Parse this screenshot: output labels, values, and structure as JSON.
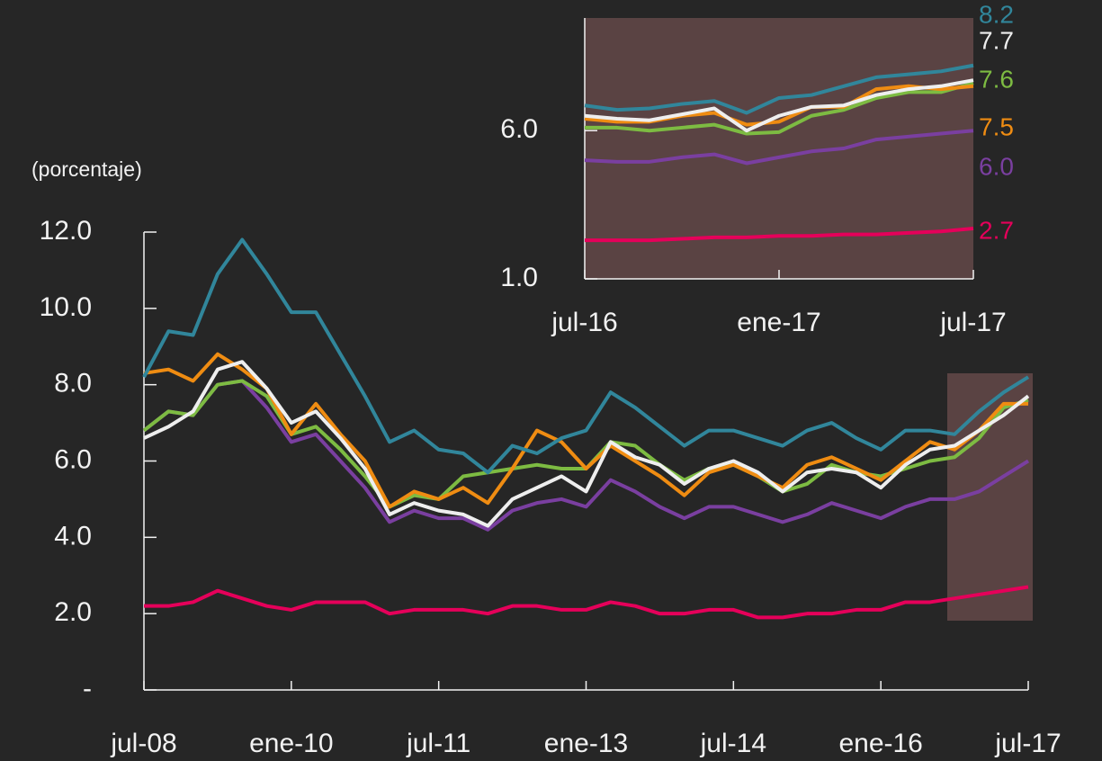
{
  "chart_data": [
    {
      "type": "line",
      "y_label": "(porcentaje)",
      "categories": [
        "jul-08",
        null,
        null,
        null,
        null,
        null,
        "ene-10",
        null,
        null,
        null,
        null,
        null,
        "jul-11",
        null,
        null,
        null,
        null,
        null,
        "ene-13",
        null,
        null,
        null,
        null,
        null,
        "jul-14",
        null,
        null,
        null,
        null,
        null,
        "ene-16",
        null,
        null,
        null,
        null,
        null,
        "jul-17"
      ],
      "ylim": [
        0,
        12
      ],
      "yticks": [
        {
          "value": 0,
          "label": "-"
        },
        {
          "value": 2,
          "label": "2.0"
        },
        {
          "value": 4,
          "label": "4.0"
        },
        {
          "value": 6,
          "label": "6.0"
        },
        {
          "value": 8,
          "label": "8.0"
        },
        {
          "value": 10,
          "label": "10.0"
        },
        {
          "value": 12,
          "label": "12.0"
        }
      ],
      "series": [
        {
          "color": "#e5005a",
          "values": [
            2.2,
            2.2,
            2.3,
            2.6,
            2.4,
            2.2,
            2.1,
            2.3,
            2.3,
            2.3,
            2.0,
            2.1,
            2.1,
            2.1,
            2.0,
            2.2,
            2.2,
            2.1,
            2.1,
            2.3,
            2.2,
            2.0,
            2.0,
            2.1,
            2.1,
            1.9,
            1.9,
            2.0,
            2.0,
            2.1,
            2.1,
            2.3,
            2.3,
            2.4,
            2.5,
            2.6,
            2.7
          ]
        },
        {
          "color": "#7a3fa0",
          "values": [
            6.8,
            7.3,
            7.2,
            8.0,
            8.1,
            7.4,
            6.5,
            6.7,
            6.0,
            5.3,
            4.4,
            4.7,
            4.5,
            4.5,
            4.2,
            4.7,
            4.9,
            5.0,
            4.8,
            5.5,
            5.2,
            4.8,
            4.5,
            4.8,
            4.8,
            4.6,
            4.4,
            4.6,
            4.9,
            4.7,
            4.5,
            4.8,
            5.0,
            5.0,
            5.2,
            5.6,
            6.0
          ]
        },
        {
          "color": "#7dbb42",
          "values": [
            6.8,
            7.3,
            7.2,
            8.0,
            8.1,
            7.7,
            6.7,
            6.9,
            6.3,
            5.6,
            4.8,
            5.1,
            5.0,
            5.6,
            5.7,
            5.8,
            5.9,
            5.8,
            5.8,
            6.5,
            6.4,
            5.9,
            5.5,
            5.8,
            5.9,
            5.6,
            5.2,
            5.4,
            5.9,
            5.7,
            5.6,
            5.8,
            6.0,
            6.1,
            6.6,
            7.4,
            7.6
          ]
        },
        {
          "color": "#ef8c12",
          "values": [
            8.3,
            8.4,
            8.1,
            8.8,
            8.4,
            7.9,
            6.7,
            7.5,
            6.7,
            6.0,
            4.8,
            5.2,
            5.0,
            5.3,
            4.9,
            5.8,
            6.8,
            6.5,
            5.8,
            6.4,
            6.0,
            5.6,
            5.1,
            5.7,
            5.9,
            5.6,
            5.3,
            5.9,
            6.1,
            5.8,
            5.5,
            6.0,
            6.5,
            6.3,
            6.8,
            7.5,
            7.5
          ]
        },
        {
          "color": "#31869b",
          "values": [
            8.2,
            9.4,
            9.3,
            10.9,
            11.8,
            10.9,
            9.9,
            9.9,
            8.8,
            7.7,
            6.5,
            6.8,
            6.3,
            6.2,
            5.7,
            6.4,
            6.2,
            6.6,
            6.8,
            7.8,
            7.4,
            6.9,
            6.4,
            6.8,
            6.8,
            6.6,
            6.4,
            6.8,
            7.0,
            6.6,
            6.3,
            6.8,
            6.8,
            6.7,
            7.3,
            7.8,
            8.2
          ]
        },
        {
          "color": "#eeeeee",
          "values": [
            6.6,
            6.9,
            7.3,
            8.4,
            8.6,
            7.9,
            7.0,
            7.3,
            6.6,
            5.8,
            4.6,
            4.9,
            4.7,
            4.6,
            4.3,
            5.0,
            5.3,
            5.6,
            5.2,
            6.5,
            6.1,
            5.9,
            5.4,
            5.8,
            6.0,
            5.7,
            5.2,
            5.7,
            5.8,
            5.7,
            5.3,
            5.9,
            6.3,
            6.4,
            6.8,
            7.2,
            7.7
          ]
        }
      ]
    },
    {
      "type": "line",
      "categories": [
        "jul-16",
        null,
        null,
        null,
        null,
        null,
        "ene-17",
        null,
        null,
        null,
        null,
        null,
        "jul-17"
      ],
      "ylim": [
        1,
        9.8
      ],
      "yticks": [
        {
          "value": 1,
          "label": "1.0"
        },
        {
          "value": 6,
          "label": "6.0"
        }
      ],
      "series": [
        {
          "color": "#e5005a",
          "values": [
            2.3,
            2.3,
            2.3,
            2.35,
            2.4,
            2.4,
            2.45,
            2.45,
            2.5,
            2.5,
            2.55,
            2.6,
            2.7
          ],
          "value_labels": [
            null,
            null,
            null,
            null,
            null,
            null,
            null,
            null,
            null,
            null,
            null,
            null,
            "2.7"
          ]
        },
        {
          "color": "#7a3fa0",
          "values": [
            5.0,
            4.95,
            4.95,
            5.1,
            5.2,
            4.9,
            5.1,
            5.3,
            5.4,
            5.7,
            5.8,
            5.9,
            6.0
          ],
          "value_labels": [
            null,
            null,
            null,
            null,
            null,
            null,
            null,
            null,
            null,
            null,
            null,
            null,
            "6.0"
          ]
        },
        {
          "color": "#7dbb42",
          "values": [
            6.1,
            6.1,
            6.0,
            6.1,
            6.2,
            5.9,
            5.95,
            6.5,
            6.7,
            7.1,
            7.3,
            7.3,
            7.6
          ],
          "value_labels": [
            null,
            null,
            null,
            null,
            null,
            null,
            null,
            null,
            null,
            null,
            null,
            null,
            "7.6"
          ]
        },
        {
          "color": "#ef8c12",
          "values": [
            6.4,
            6.3,
            6.3,
            6.5,
            6.6,
            6.2,
            6.3,
            6.8,
            6.8,
            7.4,
            7.5,
            7.4,
            7.5
          ],
          "value_labels": [
            null,
            null,
            null,
            null,
            null,
            null,
            null,
            null,
            null,
            null,
            null,
            null,
            "7.5"
          ]
        },
        {
          "color": "#31869b",
          "values": [
            6.85,
            6.7,
            6.75,
            6.9,
            7.0,
            6.6,
            7.1,
            7.2,
            7.5,
            7.8,
            7.9,
            8.0,
            8.2
          ],
          "value_labels": [
            null,
            null,
            null,
            null,
            null,
            null,
            null,
            null,
            null,
            null,
            null,
            null,
            "8.2"
          ]
        },
        {
          "color": "#eeeeee",
          "values": [
            6.5,
            6.4,
            6.35,
            6.55,
            6.75,
            6.0,
            6.5,
            6.8,
            6.85,
            7.2,
            7.4,
            7.5,
            7.7
          ],
          "value_labels": [
            null,
            null,
            null,
            null,
            null,
            null,
            null,
            null,
            null,
            null,
            null,
            null,
            "7.7"
          ]
        }
      ]
    }
  ]
}
